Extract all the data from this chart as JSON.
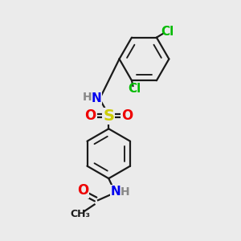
{
  "background_color": "#ebebeb",
  "bond_color": "#1a1a1a",
  "nitrogen_color": "#0000ee",
  "oxygen_color": "#ee0000",
  "sulfur_color": "#cccc00",
  "chlorine_color": "#00bb00",
  "hydrogen_color": "#888888",
  "line_width": 1.6,
  "figsize": [
    3.0,
    3.0
  ],
  "dpi": 100,
  "xlim": [
    0,
    10
  ],
  "ylim": [
    0,
    10
  ]
}
